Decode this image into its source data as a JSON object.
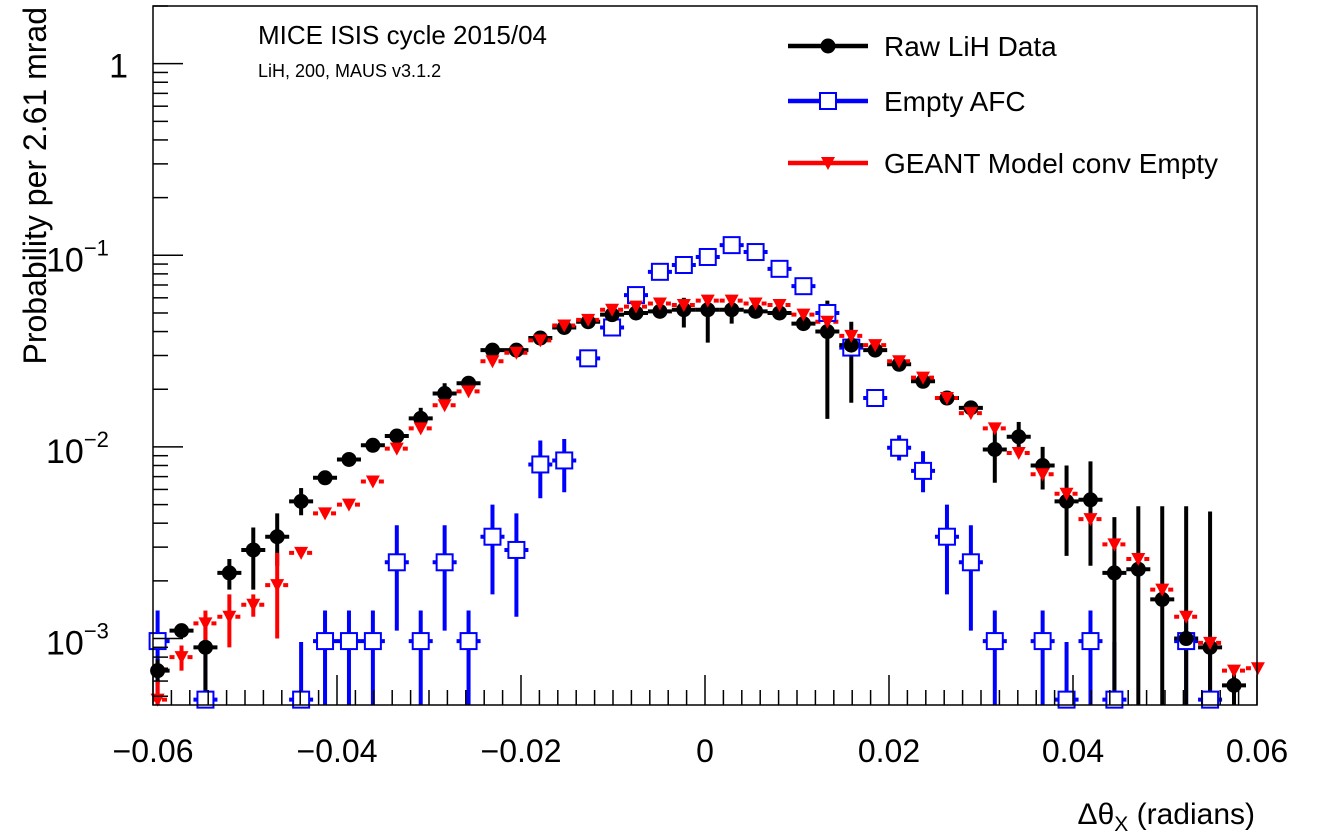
{
  "chart_data": {
    "type": "scatter",
    "annotation_title": "MICE ISIS cycle 2015/04",
    "annotation_subtitle": "LiH, 200, MAUS v3.1.2",
    "xlabel_main": "Δθ",
    "xlabel_sub": "X",
    "xlabel_rest": " (radians)",
    "ylabel": "Probability per 2.61 mrad",
    "x_scale": "linear",
    "y_scale": "log",
    "xlim": [
      -0.06,
      0.06
    ],
    "ylim": [
      0.00045,
      2.0
    ],
    "x_ticks": [
      {
        "v": -0.06,
        "label": "−0.06"
      },
      {
        "v": -0.04,
        "label": "−0.04"
      },
      {
        "v": -0.02,
        "label": "−0.02"
      },
      {
        "v": 0,
        "label": "0"
      },
      {
        "v": 0.02,
        "label": "0.02"
      },
      {
        "v": 0.04,
        "label": "0.04"
      },
      {
        "v": 0.06,
        "label": "0.06"
      }
    ],
    "y_ticks": [
      {
        "v": 1,
        "base": "1",
        "exp": ""
      },
      {
        "v": 0.1,
        "base": "10",
        "exp": "−1"
      },
      {
        "v": 0.01,
        "base": "10",
        "exp": "−2"
      },
      {
        "v": 0.001,
        "base": "10",
        "exp": "−3"
      }
    ],
    "bin_width": 0.00261,
    "legend_position": "top-right",
    "series": [
      {
        "name": "Raw LiH Data",
        "color": "#000000",
        "marker": "filled-circle",
        "points": [
          {
            "x": -0.0595,
            "y": 0.00068,
            "lo": 0.00058,
            "hi": 0.00078
          },
          {
            "x": -0.0569,
            "y": 0.0011
          },
          {
            "x": -0.0543,
            "y": 0.0009,
            "lo": 0.00045,
            "hi": 0.0012
          },
          {
            "x": -0.0517,
            "y": 0.0022,
            "lo": 0.0018,
            "hi": 0.0026
          },
          {
            "x": -0.0491,
            "y": 0.0029,
            "lo": 0.0018,
            "hi": 0.0038
          },
          {
            "x": -0.0465,
            "y": 0.0034,
            "lo": 0.0024,
            "hi": 0.0045
          },
          {
            "x": -0.0439,
            "y": 0.0052,
            "lo": 0.0044,
            "hi": 0.0061
          },
          {
            "x": -0.0413,
            "y": 0.0069
          },
          {
            "x": -0.0387,
            "y": 0.0086
          },
          {
            "x": -0.0361,
            "y": 0.0102
          },
          {
            "x": -0.0335,
            "y": 0.0114,
            "lo": 0.0105,
            "hi": 0.0124
          },
          {
            "x": -0.0309,
            "y": 0.0141,
            "lo": 0.012,
            "hi": 0.016
          },
          {
            "x": -0.0283,
            "y": 0.019,
            "lo": 0.017,
            "hi": 0.0215
          },
          {
            "x": -0.0257,
            "y": 0.0215
          },
          {
            "x": -0.0231,
            "y": 0.032
          },
          {
            "x": -0.0205,
            "y": 0.032
          },
          {
            "x": -0.0179,
            "y": 0.037
          },
          {
            "x": -0.0153,
            "y": 0.042
          },
          {
            "x": -0.0127,
            "y": 0.045
          },
          {
            "x": -0.0101,
            "y": 0.049
          },
          {
            "x": -0.0075,
            "y": 0.05
          },
          {
            "x": -0.0049,
            "y": 0.051
          },
          {
            "x": -0.0023,
            "y": 0.052,
            "lo": 0.042,
            "hi": 0.06
          },
          {
            "x": 0.0003,
            "y": 0.052,
            "lo": 0.035,
            "hi": 0.06
          },
          {
            "x": 0.0029,
            "y": 0.052,
            "lo": 0.044,
            "hi": 0.06
          },
          {
            "x": 0.0055,
            "y": 0.051
          },
          {
            "x": 0.0081,
            "y": 0.05
          },
          {
            "x": 0.0107,
            "y": 0.044
          },
          {
            "x": 0.0133,
            "y": 0.04,
            "lo": 0.014,
            "hi": 0.058
          },
          {
            "x": 0.0159,
            "y": 0.034,
            "lo": 0.017,
            "hi": 0.045
          },
          {
            "x": 0.0185,
            "y": 0.032
          },
          {
            "x": 0.0211,
            "y": 0.027
          },
          {
            "x": 0.0237,
            "y": 0.022
          },
          {
            "x": 0.0263,
            "y": 0.018
          },
          {
            "x": 0.0289,
            "y": 0.016
          },
          {
            "x": 0.0315,
            "y": 0.0097,
            "lo": 0.0065,
            "hi": 0.012
          },
          {
            "x": 0.0341,
            "y": 0.0113,
            "lo": 0.0093,
            "hi": 0.0135
          },
          {
            "x": 0.0367,
            "y": 0.008,
            "lo": 0.006,
            "hi": 0.01
          },
          {
            "x": 0.0393,
            "y": 0.0052,
            "lo": 0.0027,
            "hi": 0.008
          },
          {
            "x": 0.0419,
            "y": 0.0053,
            "lo": 0.0024,
            "hi": 0.0084
          },
          {
            "x": 0.0445,
            "y": 0.0022,
            "lo": 0.00045,
            "hi": 0.0043
          },
          {
            "x": 0.0471,
            "y": 0.0023,
            "lo": 0.00045,
            "hi": 0.0049
          },
          {
            "x": 0.0497,
            "y": 0.0016,
            "lo": 0.00045,
            "hi": 0.0049
          },
          {
            "x": 0.0523,
            "y": 0.001,
            "lo": 0.00045,
            "hi": 0.0049
          },
          {
            "x": 0.0549,
            "y": 0.0009,
            "lo": 0.00045,
            "hi": 0.0046
          },
          {
            "x": 0.0575,
            "y": 0.00057,
            "lo": 0.00045,
            "hi": 0.00065
          }
        ]
      },
      {
        "name": "Empty AFC",
        "color": "#0000ff",
        "marker": "open-square",
        "points": [
          {
            "x": -0.0595,
            "y": 0.00097,
            "lo": 0.00045,
            "hi": 0.0014
          },
          {
            "x": -0.0543,
            "y": 0.00048,
            "lo": 0.00045,
            "hi": 0.00096
          },
          {
            "x": -0.0439,
            "y": 0.00048,
            "lo": 0.00045,
            "hi": 0.00096
          },
          {
            "x": -0.0413,
            "y": 0.00097,
            "lo": 0.00045,
            "hi": 0.0014
          },
          {
            "x": -0.0387,
            "y": 0.00097,
            "lo": 0.00045,
            "hi": 0.0014
          },
          {
            "x": -0.0361,
            "y": 0.00097,
            "lo": 0.00045,
            "hi": 0.0014
          },
          {
            "x": -0.0335,
            "y": 0.0025,
            "lo": 0.0011,
            "hi": 0.0039
          },
          {
            "x": -0.0309,
            "y": 0.00097,
            "lo": 0.00045,
            "hi": 0.0014
          },
          {
            "x": -0.0283,
            "y": 0.0025,
            "lo": 0.0011,
            "hi": 0.0039
          },
          {
            "x": -0.0257,
            "y": 0.00097,
            "lo": 0.00045,
            "hi": 0.0014
          },
          {
            "x": -0.0231,
            "y": 0.0034,
            "lo": 0.0017,
            "hi": 0.005
          },
          {
            "x": -0.0205,
            "y": 0.0029,
            "lo": 0.0013,
            "hi": 0.0045
          },
          {
            "x": -0.0179,
            "y": 0.0081,
            "lo": 0.0054,
            "hi": 0.0108
          },
          {
            "x": -0.0153,
            "y": 0.0085,
            "lo": 0.0058,
            "hi": 0.011
          },
          {
            "x": -0.0127,
            "y": 0.029
          },
          {
            "x": -0.0101,
            "y": 0.042
          },
          {
            "x": -0.0075,
            "y": 0.062
          },
          {
            "x": -0.0049,
            "y": 0.082
          },
          {
            "x": -0.0023,
            "y": 0.089
          },
          {
            "x": 0.0003,
            "y": 0.098
          },
          {
            "x": 0.0029,
            "y": 0.113
          },
          {
            "x": 0.0055,
            "y": 0.104
          },
          {
            "x": 0.0081,
            "y": 0.085
          },
          {
            "x": 0.0107,
            "y": 0.069
          },
          {
            "x": 0.0133,
            "y": 0.05
          },
          {
            "x": 0.0159,
            "y": 0.033
          },
          {
            "x": 0.0185,
            "y": 0.018
          },
          {
            "x": 0.0211,
            "y": 0.0099,
            "lo": 0.0085,
            "hi": 0.0115
          },
          {
            "x": 0.0237,
            "y": 0.0075,
            "lo": 0.0058,
            "hi": 0.0095
          },
          {
            "x": 0.0263,
            "y": 0.0034,
            "lo": 0.0017,
            "hi": 0.005
          },
          {
            "x": 0.0289,
            "y": 0.0025,
            "lo": 0.0011,
            "hi": 0.0039
          },
          {
            "x": 0.0315,
            "y": 0.00097,
            "lo": 0.00045,
            "hi": 0.0014
          },
          {
            "x": 0.0367,
            "y": 0.00097,
            "lo": 0.00045,
            "hi": 0.0014
          },
          {
            "x": 0.0393,
            "y": 0.00048,
            "lo": 0.00045,
            "hi": 0.00096
          },
          {
            "x": 0.0419,
            "y": 0.00097,
            "lo": 0.00045,
            "hi": 0.0014
          },
          {
            "x": 0.0445,
            "y": 0.00048,
            "lo": 0.00045,
            "hi": 0.00096
          },
          {
            "x": 0.0523,
            "y": 0.00097,
            "lo": 0.00045,
            "hi": 0.0014
          },
          {
            "x": 0.0549,
            "y": 0.00048,
            "lo": 0.00045,
            "hi": 0.00096
          }
        ]
      },
      {
        "name": "GEANT Model conv Empty",
        "color": "#ff0000",
        "marker": "filled-triangle-down",
        "points": [
          {
            "x": -0.0595,
            "y": 0.00048,
            "lo": 0.00045,
            "hi": 0.0006
          },
          {
            "x": -0.0569,
            "y": 0.0008,
            "lo": 0.00068,
            "hi": 0.00092
          },
          {
            "x": -0.0543,
            "y": 0.0012,
            "lo": 0.00095,
            "hi": 0.0014
          },
          {
            "x": -0.0517,
            "y": 0.0013,
            "lo": 0.0009,
            "hi": 0.0017
          },
          {
            "x": -0.0491,
            "y": 0.0015,
            "lo": 0.0013,
            "hi": 0.0017
          },
          {
            "x": -0.0465,
            "y": 0.0019,
            "lo": 0.001,
            "hi": 0.0028
          },
          {
            "x": -0.0439,
            "y": 0.0028
          },
          {
            "x": -0.0413,
            "y": 0.0045
          },
          {
            "x": -0.0387,
            "y": 0.005
          },
          {
            "x": -0.0361,
            "y": 0.0066
          },
          {
            "x": -0.0335,
            "y": 0.0098
          },
          {
            "x": -0.0309,
            "y": 0.0125
          },
          {
            "x": -0.0283,
            "y": 0.0165
          },
          {
            "x": -0.0257,
            "y": 0.0195
          },
          {
            "x": -0.0231,
            "y": 0.028
          },
          {
            "x": -0.0205,
            "y": 0.031
          },
          {
            "x": -0.0179,
            "y": 0.036
          },
          {
            "x": -0.0153,
            "y": 0.043
          },
          {
            "x": -0.0127,
            "y": 0.046
          },
          {
            "x": -0.0101,
            "y": 0.052
          },
          {
            "x": -0.0075,
            "y": 0.054
          },
          {
            "x": -0.0049,
            "y": 0.056
          },
          {
            "x": -0.0023,
            "y": 0.055
          },
          {
            "x": 0.0003,
            "y": 0.058
          },
          {
            "x": 0.0029,
            "y": 0.058
          },
          {
            "x": 0.0055,
            "y": 0.056
          },
          {
            "x": 0.0081,
            "y": 0.055
          },
          {
            "x": 0.0107,
            "y": 0.049
          },
          {
            "x": 0.0133,
            "y": 0.045
          },
          {
            "x": 0.0159,
            "y": 0.038
          },
          {
            "x": 0.0185,
            "y": 0.034
          },
          {
            "x": 0.0211,
            "y": 0.028
          },
          {
            "x": 0.0237,
            "y": 0.023
          },
          {
            "x": 0.0263,
            "y": 0.018
          },
          {
            "x": 0.0289,
            "y": 0.015
          },
          {
            "x": 0.0315,
            "y": 0.0125
          },
          {
            "x": 0.0341,
            "y": 0.0093
          },
          {
            "x": 0.0367,
            "y": 0.0072
          },
          {
            "x": 0.0393,
            "y": 0.0057
          },
          {
            "x": 0.0419,
            "y": 0.0042
          },
          {
            "x": 0.0445,
            "y": 0.0031
          },
          {
            "x": 0.0471,
            "y": 0.0026
          },
          {
            "x": 0.0497,
            "y": 0.0018
          },
          {
            "x": 0.0523,
            "y": 0.0013
          },
          {
            "x": 0.0549,
            "y": 0.00095
          },
          {
            "x": 0.0575,
            "y": 0.00068
          },
          {
            "x": 0.0601,
            "y": 0.0007
          }
        ]
      }
    ]
  }
}
